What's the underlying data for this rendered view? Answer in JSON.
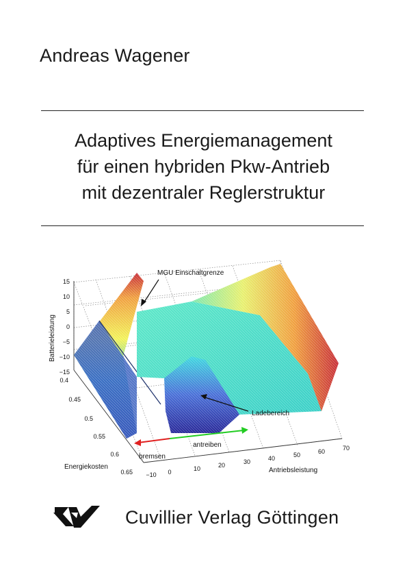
{
  "author": "Andreas Wagener",
  "title": {
    "lines": [
      "Adaptives Energiemanagement",
      "für einen hybriden Pkw-Antrieb",
      "mit dezentraler Reglerstruktur"
    ]
  },
  "figure": {
    "z_axis_label": "Batterieleistung",
    "z_ticks": [
      "15",
      "10",
      "5",
      "0",
      "−5",
      "−10",
      "−15"
    ],
    "y_axis_label": "Energiekosten",
    "y_ticks": [
      "0.4",
      "0.45",
      "0.5",
      "0.55",
      "0.6",
      "0.65"
    ],
    "x_axis_label": "Antriebsleistung",
    "x_ticks": [
      "−10",
      "0",
      "10",
      "20",
      "30",
      "40",
      "50",
      "60",
      "70"
    ],
    "annotations": {
      "mgu": "MGU Einschaltgrenze",
      "lade": "Ladebereich",
      "bremsen": "bremsen",
      "antreiben": "antreiben"
    },
    "colors": {
      "bremsen_arrow": "#e02020",
      "antreiben_arrow": "#22cc22"
    }
  },
  "publisher": "Cuvillier Verlag Göttingen"
}
